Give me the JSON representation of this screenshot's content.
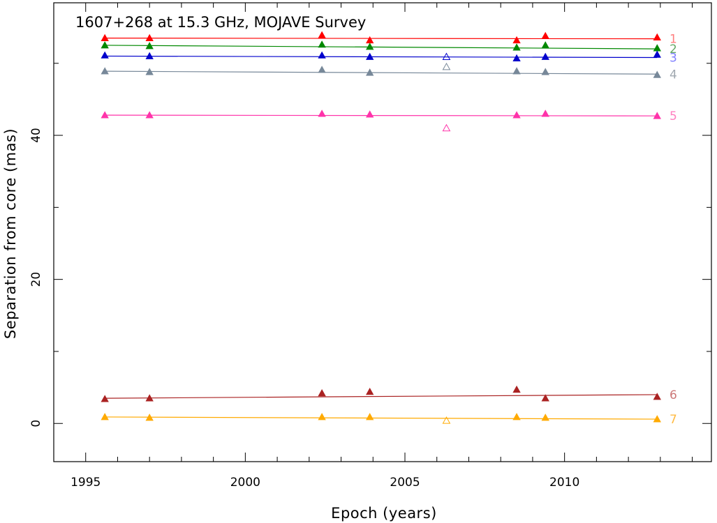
{
  "chart_data": {
    "type": "scatter",
    "title": "1607+268 at 15.3 GHz, MOJAVE Survey",
    "xlabel": "Epoch (years)",
    "ylabel": "Separation from core (mas)",
    "xlim": [
      1994,
      2014.6
    ],
    "ylim": [
      -5.3,
      58.4
    ],
    "xticks": [
      1995,
      2000,
      2005,
      2010
    ],
    "yticks": [
      0,
      20,
      40
    ],
    "grid": false,
    "series": [
      {
        "name": "1",
        "color": "#ff0000",
        "label_color": "#ff7f7f",
        "fit": [
          [
            1995.6,
            53.5
          ],
          [
            2012.9,
            53.4
          ]
        ],
        "points": [
          [
            1995.6,
            53.5
          ],
          [
            1997.0,
            53.5
          ],
          [
            2002.4,
            53.9
          ],
          [
            2003.9,
            53.2
          ],
          [
            2008.5,
            53.2
          ],
          [
            2009.4,
            53.8
          ],
          [
            2012.9,
            53.6
          ]
        ],
        "open_points": []
      },
      {
        "name": "2",
        "color": "#008800",
        "label_color": "#66aa66",
        "fit": [
          [
            1995.6,
            52.5
          ],
          [
            2012.9,
            52.0
          ]
        ],
        "points": [
          [
            1995.6,
            52.5
          ],
          [
            1997.0,
            52.4
          ],
          [
            2002.4,
            52.6
          ],
          [
            2003.9,
            52.3
          ],
          [
            2008.5,
            52.2
          ],
          [
            2009.4,
            52.5
          ],
          [
            2012.9,
            52.1
          ]
        ],
        "open_points": []
      },
      {
        "name": "3",
        "color": "#0000cc",
        "label_color": "#7f7fff",
        "fit": [
          [
            1995.6,
            51.0
          ],
          [
            2012.9,
            50.8
          ]
        ],
        "points": [
          [
            1995.6,
            51.1
          ],
          [
            1997.0,
            51.0
          ],
          [
            2002.4,
            51.1
          ],
          [
            2003.9,
            50.9
          ],
          [
            2008.5,
            50.7
          ],
          [
            2009.4,
            50.9
          ],
          [
            2012.9,
            51.2
          ]
        ],
        "open_points": [
          [
            2006.3,
            50.9
          ]
        ]
      },
      {
        "name": "4",
        "color": "#778899",
        "label_color": "#a0a8b0",
        "fit": [
          [
            1995.6,
            48.9
          ],
          [
            2012.9,
            48.5
          ]
        ],
        "points": [
          [
            1995.6,
            48.9
          ],
          [
            1997.0,
            48.8
          ],
          [
            2002.4,
            49.1
          ],
          [
            2003.9,
            48.7
          ],
          [
            2008.5,
            48.9
          ],
          [
            2009.4,
            48.8
          ],
          [
            2012.9,
            48.4
          ]
        ],
        "open_points": [
          [
            2006.3,
            49.5
          ]
        ]
      },
      {
        "name": "5",
        "color": "#ff33aa",
        "label_color": "#ff80c0",
        "fit": [
          [
            1995.6,
            42.8
          ],
          [
            2012.9,
            42.7
          ]
        ],
        "points": [
          [
            1995.6,
            42.8
          ],
          [
            1997.0,
            42.8
          ],
          [
            2002.4,
            43.0
          ],
          [
            2003.9,
            42.9
          ],
          [
            2008.5,
            42.8
          ],
          [
            2009.4,
            43.0
          ],
          [
            2012.9,
            42.7
          ]
        ],
        "open_points": [
          [
            2006.3,
            41.0
          ]
        ]
      },
      {
        "name": "6",
        "color": "#aa2222",
        "label_color": "#cc7777",
        "fit": [
          [
            1995.6,
            3.5
          ],
          [
            2012.9,
            4.0
          ]
        ],
        "points": [
          [
            1995.6,
            3.4
          ],
          [
            1997.0,
            3.5
          ],
          [
            2002.4,
            4.2
          ],
          [
            2003.9,
            4.4
          ],
          [
            2008.5,
            4.7
          ],
          [
            2009.4,
            3.5
          ],
          [
            2012.9,
            3.7
          ]
        ],
        "open_points": []
      },
      {
        "name": "7",
        "color": "#ffaa00",
        "label_color": "#ffbb44",
        "fit": [
          [
            1995.6,
            0.9
          ],
          [
            2012.9,
            0.6
          ]
        ],
        "points": [
          [
            1995.6,
            0.9
          ],
          [
            1997.0,
            0.8
          ],
          [
            2002.4,
            0.9
          ],
          [
            2003.9,
            0.9
          ],
          [
            2008.5,
            0.9
          ],
          [
            2009.4,
            0.8
          ],
          [
            2012.9,
            0.6
          ]
        ],
        "open_points": [
          [
            2006.3,
            0.4
          ]
        ]
      }
    ]
  }
}
